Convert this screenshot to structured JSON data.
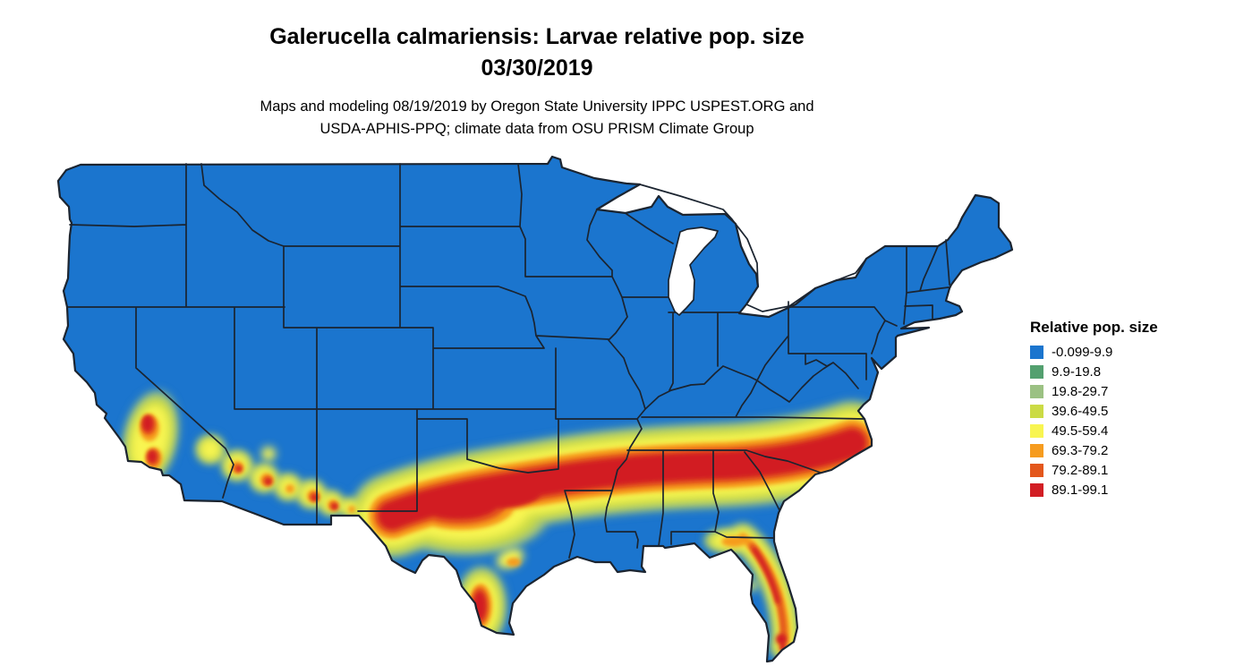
{
  "title": {
    "line1": "Galerucella calmariensis: Larvae relative pop. size",
    "line2": "03/30/2019"
  },
  "subtitle": {
    "line1": "Maps and modeling 08/19/2019 by Oregon State University IPPC USPEST.ORG and",
    "line2": "USDA-APHIS-PPQ; climate data from OSU PRISM Climate Group"
  },
  "legend": {
    "title": "Relative pop. size",
    "items": [
      {
        "label": "-0.099-9.9",
        "color": "#1B75CE"
      },
      {
        "label": "9.9-19.8",
        "color": "#53A06F"
      },
      {
        "label": "19.8-29.7",
        "color": "#9BC183"
      },
      {
        "label": "39.6-49.5",
        "color": "#CBDB45"
      },
      {
        "label": "49.5-59.4",
        "color": "#F8F551"
      },
      {
        "label": "69.3-79.2",
        "color": "#F69C1F"
      },
      {
        "label": "79.2-89.1",
        "color": "#E3571C"
      },
      {
        "label": "89.1-99.1",
        "color": "#D21E24"
      }
    ]
  },
  "map": {
    "base_color": "#1B75CE",
    "border_color": "#1B2430",
    "water_color": "#FFFFFF"
  }
}
